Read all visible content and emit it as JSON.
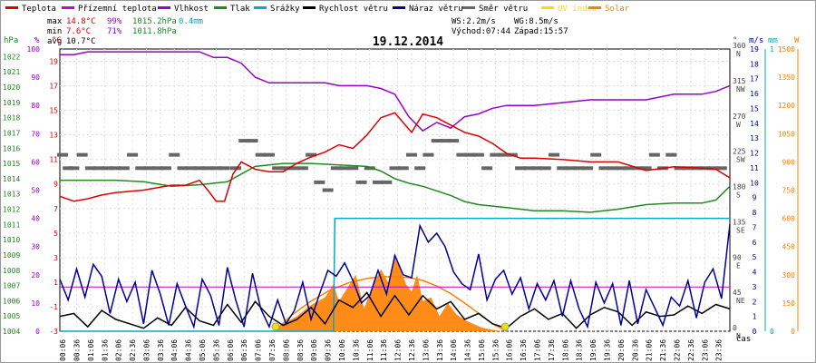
{
  "chart_data": {
    "type": "line",
    "title": "19.12.2014",
    "xlabel": "čas",
    "legend": [
      {
        "name": "Teplota",
        "color": "#dd0000"
      },
      {
        "name": "Přízemní teplota",
        "color": "#cc00cc"
      },
      {
        "name": "Vlhkost",
        "color": "#9900cc"
      },
      {
        "name": "Tlak",
        "color": "#228822"
      },
      {
        "name": "Srážky",
        "color": "#00aacc"
      },
      {
        "name": "Rychlost větru",
        "color": "#000000"
      },
      {
        "name": "Náraz větru",
        "color": "#000099"
      },
      {
        "name": "Směr větru",
        "color": "#666666"
      },
      {
        "name": "UV index",
        "color": "#f0e000"
      },
      {
        "name": "Solar",
        "color": "#ff8000"
      }
    ],
    "stats": {
      "max_label": "max",
      "max_temp": "14.8°C",
      "max_hum": "99%",
      "max_press": "1015.2hPa",
      "rain": "0.4mm",
      "min_label": "min",
      "min_temp": "7.6°C",
      "min_hum": "71%",
      "min_press": "1011.8hPa",
      "avg_label": "avg",
      "avg_temp": "10.7°C",
      "ws": "WS:2.2m/s",
      "wg": "WG:8.5m/s",
      "sunrise": "Východ:07:44",
      "sunset": "Západ:15:57"
    },
    "axis_units": {
      "hpa": "hPa",
      "pct": "%",
      "degc": "°C",
      "deg": "°",
      "mm": "mm",
      "ms": "m/s",
      "w": "W"
    },
    "axes": {
      "temperature_c": {
        "ticks": [
          "-3",
          "-1",
          "1",
          "3",
          "5",
          "7",
          "9",
          "11",
          "13",
          "15",
          "17",
          "19"
        ],
        "range": [
          -3,
          20
        ]
      },
      "humidity_pct": {
        "ticks": [
          "0",
          "10",
          "20",
          "30",
          "40",
          "50",
          "60",
          "70",
          "80",
          "90",
          "100"
        ],
        "range": [
          0,
          100
        ]
      },
      "pressure_hpa": {
        "ticks": [
          "1004",
          "1005",
          "1006",
          "1007",
          "1008",
          "1009",
          "1010",
          "1011",
          "1012",
          "1013",
          "1014",
          "1015",
          "1016",
          "1017",
          "1018",
          "1019",
          "1020",
          "1021",
          "1022"
        ],
        "range": [
          1004,
          1022.5
        ]
      },
      "wind_dir_deg": {
        "ticks": [
          "0",
          "45",
          "90",
          "135",
          "180",
          "225",
          "270",
          "315",
          "360"
        ],
        "labels": [
          "N",
          "NE",
          "E",
          "SE",
          "S",
          "SW",
          "W",
          "NW",
          "N"
        ],
        "range": [
          0,
          360
        ]
      },
      "rain_mm": {
        "ticks": [
          "0",
          "1"
        ],
        "range": [
          0,
          1
        ]
      },
      "wind_ms": {
        "ticks": [
          "0",
          "1",
          "2",
          "3",
          "4",
          "5",
          "6",
          "7",
          "8",
          "9",
          "10",
          "11",
          "12",
          "13",
          "14",
          "15",
          "16",
          "17",
          "18",
          "19"
        ],
        "range": [
          0,
          19
        ]
      },
      "solar_w": {
        "ticks": [
          "0",
          "150",
          "300",
          "450",
          "600",
          "750",
          "900",
          "1050",
          "1200",
          "1350",
          "1500"
        ],
        "range": [
          0,
          1500
        ]
      }
    },
    "x_ticks": [
      "00:06",
      "00:36",
      "01:06",
      "01:36",
      "02:06",
      "02:36",
      "03:06",
      "03:36",
      "04:06",
      "04:36",
      "05:06",
      "05:36",
      "06:06",
      "06:36",
      "07:06",
      "07:36",
      "08:06",
      "08:36",
      "09:06",
      "09:36",
      "10:06",
      "10:36",
      "11:06",
      "11:36",
      "12:06",
      "12:36",
      "13:06",
      "13:36",
      "14:06",
      "14:36",
      "15:06",
      "15:36",
      "16:06",
      "16:36",
      "17:06",
      "17:36",
      "18:06",
      "18:36",
      "19:06",
      "19:36",
      "20:06",
      "20:36",
      "21:06",
      "21:36",
      "22:06",
      "22:36",
      "23:06",
      "23:36"
    ],
    "x_range_hours": [
      0,
      24
    ],
    "series": [
      {
        "name": "Teplota",
        "unit": "°C",
        "axis": "temperature_c",
        "x": [
          0,
          0.5,
          1,
          1.5,
          2,
          2.5,
          3,
          3.5,
          4,
          4.5,
          5,
          5.3,
          5.6,
          5.9,
          6.2,
          6.5,
          7,
          7.5,
          8,
          8.5,
          9,
          9.5,
          10,
          10.5,
          11,
          11.5,
          12,
          12.3,
          12.6,
          13,
          13.5,
          14,
          14.5,
          15,
          15.5,
          16,
          16.5,
          17,
          18,
          19,
          20,
          21,
          22,
          23,
          23.5,
          24
        ],
        "values": [
          8.0,
          7.6,
          7.8,
          8.1,
          8.3,
          8.4,
          8.5,
          8.7,
          8.9,
          8.9,
          9.3,
          8.5,
          7.6,
          7.6,
          9.8,
          10.8,
          10.2,
          10.0,
          10.0,
          10.7,
          11.2,
          11.6,
          12.2,
          11.9,
          13.0,
          14.4,
          14.8,
          14.0,
          13.2,
          14.7,
          14.4,
          13.8,
          13.2,
          12.9,
          12.3,
          11.5,
          11.1,
          11.1,
          11.0,
          10.8,
          10.8,
          10.1,
          10.4,
          10.3,
          10.2,
          9.5
        ]
      },
      {
        "name": "Přízemní teplota",
        "unit": "°C",
        "axis": "temperature_c",
        "x": [
          0,
          24
        ],
        "values": [
          0.6,
          0.6
        ]
      },
      {
        "name": "Vlhkost",
        "unit": "%",
        "axis": "humidity_pct",
        "x": [
          0,
          0.5,
          1,
          2,
          3,
          4,
          5,
          5.5,
          6,
          6.5,
          7,
          7.5,
          8,
          8.5,
          9,
          9.5,
          10,
          10.5,
          11,
          11.5,
          12,
          12.5,
          13,
          13.5,
          14,
          14.5,
          15,
          15.5,
          16,
          17,
          18,
          19,
          20,
          21,
          22,
          23,
          23.5,
          24
        ],
        "values": [
          98,
          98,
          99,
          99,
          99,
          99,
          99,
          97,
          97,
          95,
          90,
          88,
          88,
          88,
          88,
          88,
          87,
          87,
          87,
          86,
          84,
          76,
          71,
          74,
          72,
          76,
          77,
          79,
          80,
          80,
          81,
          82,
          82,
          82,
          84,
          84,
          85,
          87
        ]
      },
      {
        "name": "Tlak",
        "unit": "hPa",
        "axis": "pressure_hpa",
        "x": [
          0,
          1,
          2,
          3,
          4,
          5,
          6,
          6.5,
          7,
          8,
          9,
          10,
          11,
          11.5,
          12,
          12.5,
          13,
          13.5,
          14,
          14.5,
          15,
          16,
          17,
          18,
          19,
          20,
          21,
          22,
          23,
          23.5,
          24
        ],
        "values": [
          1013.9,
          1013.9,
          1013.9,
          1013.8,
          1013.5,
          1013.6,
          1013.8,
          1014.3,
          1014.8,
          1015.0,
          1015.0,
          1014.9,
          1014.8,
          1014.5,
          1014.0,
          1013.7,
          1013.5,
          1013.2,
          1012.9,
          1012.5,
          1012.3,
          1012.1,
          1011.9,
          1011.9,
          1011.8,
          1012.0,
          1012.3,
          1012.4,
          1012.4,
          1012.6,
          1013.5
        ]
      },
      {
        "name": "Srážky",
        "unit": "mm",
        "axis": "rain_mm",
        "x": [
          0,
          9.8,
          9.85,
          23.8,
          23.85,
          24
        ],
        "values": [
          0,
          0,
          0.4,
          0.4,
          0.4,
          0.4
        ]
      },
      {
        "name": "Rychlost větru",
        "unit": "m/s",
        "axis": "wind_ms",
        "x": [
          0,
          0.5,
          1,
          1.5,
          2,
          2.5,
          3,
          3.5,
          4,
          4.5,
          5,
          5.5,
          6,
          6.5,
          7,
          7.5,
          8,
          8.5,
          9,
          9.5,
          10,
          10.5,
          11,
          11.5,
          12,
          12.5,
          13,
          13.5,
          14,
          14.5,
          15,
          15.5,
          16,
          16.5,
          17,
          17.5,
          18,
          18.5,
          19,
          19.5,
          20,
          20.5,
          21,
          21.5,
          22,
          22.5,
          23,
          23.5,
          24
        ],
        "values": [
          1.0,
          1.2,
          0.3,
          1.4,
          0.8,
          0.5,
          0.2,
          0.9,
          0.4,
          1.6,
          0.7,
          0.4,
          1.8,
          0.6,
          2.0,
          1.0,
          0.4,
          0.8,
          1.6,
          0.5,
          2.1,
          1.6,
          2.6,
          1.0,
          2.4,
          1.1,
          2.4,
          1.5,
          2.0,
          0.8,
          1.2,
          0.5,
          0.2,
          1.0,
          1.5,
          0.8,
          1.2,
          0.2,
          1.1,
          1.6,
          1.3,
          0.4,
          1.3,
          1.0,
          1.1,
          1.7,
          1.2,
          1.8,
          1.5
        ]
      },
      {
        "name": "Náraz větru",
        "unit": "m/s",
        "axis": "wind_ms",
        "x": [
          0,
          0.3,
          0.6,
          0.9,
          1.2,
          1.5,
          1.8,
          2.1,
          2.4,
          2.7,
          3,
          3.3,
          3.6,
          3.9,
          4.2,
          4.5,
          4.8,
          5.1,
          5.4,
          5.7,
          6,
          6.3,
          6.6,
          6.9,
          7.2,
          7.5,
          7.8,
          8.1,
          8.4,
          8.7,
          9,
          9.3,
          9.6,
          9.9,
          10.2,
          10.5,
          10.8,
          11.1,
          11.4,
          11.7,
          12,
          12.3,
          12.6,
          12.9,
          13.2,
          13.5,
          13.8,
          14.1,
          14.4,
          14.7,
          15,
          15.3,
          15.6,
          15.9,
          16.2,
          16.5,
          16.8,
          17.1,
          17.4,
          17.7,
          18,
          18.3,
          18.6,
          18.9,
          19.2,
          19.5,
          19.8,
          20.1,
          20.4,
          20.7,
          21,
          21.3,
          21.6,
          21.9,
          22.2,
          22.5,
          22.8,
          23.1,
          23.4,
          23.7,
          24
        ],
        "values": [
          3.5,
          2.1,
          4.2,
          2.3,
          4.5,
          3.7,
          1.2,
          3.5,
          2.0,
          3.3,
          0.5,
          4.1,
          2.5,
          0.4,
          3.2,
          1.7,
          0.3,
          3.5,
          2.4,
          0.4,
          4.3,
          2.1,
          0.3,
          3.9,
          1.5,
          0.3,
          2.1,
          0.5,
          1.4,
          3.3,
          0.8,
          2.5,
          4.1,
          3.7,
          4.6,
          3.4,
          1.9,
          2.4,
          4.1,
          2.5,
          5.1,
          3.8,
          3.6,
          7.1,
          6.0,
          6.6,
          5.7,
          4.0,
          3.2,
          2.8,
          5.2,
          2.1,
          3.5,
          4.1,
          2.5,
          3.6,
          1.5,
          3.2,
          2.1,
          3.4,
          1.0,
          3.4,
          1.5,
          0.3,
          3.3,
          1.9,
          3.2,
          0.4,
          3.4,
          0.5,
          2.8,
          1.6,
          0.4,
          2.3,
          1.7,
          3.4,
          0.9,
          3.3,
          4.2,
          2.2,
          7.2
        ]
      },
      {
        "name": "Solar",
        "unit": "W",
        "axis": "solar_w",
        "x": [
          7.7,
          8.0,
          8.5,
          9.0,
          9.5,
          9.8,
          10.0,
          10.3,
          10.6,
          10.9,
          11.2,
          11.5,
          11.8,
          12.0,
          12.2,
          12.4,
          12.6,
          12.8,
          13.0,
          13.3,
          13.6,
          13.9,
          14.2,
          14.5,
          14.8,
          15.1,
          15.4,
          15.8,
          16.0
        ],
        "values": [
          0,
          40,
          80,
          140,
          180,
          250,
          160,
          230,
          300,
          120,
          240,
          330,
          250,
          390,
          330,
          250,
          210,
          300,
          160,
          180,
          80,
          150,
          90,
          60,
          40,
          20,
          10,
          0,
          0
        ]
      },
      {
        "name": "Solar max",
        "unit": "W",
        "axis": "solar_w",
        "x": [
          7.7,
          8.3,
          9,
          9.7,
          10.4,
          11,
          11.5,
          12,
          12.5,
          13,
          13.5,
          14,
          14.5,
          15,
          15.5,
          16
        ],
        "values": [
          0,
          85,
          160,
          220,
          260,
          280,
          290,
          290,
          285,
          270,
          240,
          200,
          150,
          95,
          40,
          0
        ]
      },
      {
        "name": "Směr větru",
        "unit": "°",
        "axis": "wind_dir_deg",
        "style": "dashes",
        "x": [
          0.1,
          0.3,
          0.5,
          0.8,
          1.1,
          1.4,
          1.7,
          2.0,
          2.3,
          2.6,
          2.9,
          3.2,
          3.5,
          3.8,
          4.1,
          4.4,
          4.7,
          5.0,
          5.3,
          5.6,
          5.9,
          6.3,
          6.6,
          6.9,
          7.2,
          7.5,
          7.8,
          8.1,
          8.4,
          8.7,
          9.0,
          9.3,
          9.6,
          9.9,
          10.2,
          10.5,
          10.8,
          11.1,
          11.4,
          11.7,
          12.0,
          12.3,
          12.6,
          12.9,
          13.2,
          13.5,
          13.8,
          14.1,
          14.4,
          14.7,
          15.0,
          15.3,
          15.6,
          15.9,
          16.2,
          16.5,
          16.8,
          17.1,
          17.4,
          17.7,
          18.0,
          18.3,
          18.6,
          18.9,
          19.2,
          19.5,
          19.8,
          20.1,
          20.4,
          20.7,
          21.0,
          21.3,
          21.6,
          21.9,
          22.2,
          22.5,
          22.8,
          23.1,
          23.4,
          23.7
        ],
        "values": [
          225,
          208,
          208,
          225,
          208,
          208,
          208,
          208,
          208,
          225,
          208,
          208,
          208,
          208,
          225,
          208,
          208,
          208,
          208,
          208,
          208,
          208,
          243,
          243,
          225,
          225,
          208,
          208,
          208,
          208,
          225,
          190,
          180,
          208,
          208,
          208,
          190,
          208,
          190,
          190,
          208,
          208,
          225,
          208,
          225,
          243,
          243,
          243,
          225,
          225,
          225,
          208,
          225,
          225,
          225,
          208,
          208,
          208,
          208,
          225,
          208,
          208,
          208,
          208,
          225,
          208,
          208,
          208,
          208,
          208,
          208,
          225,
          208,
          225,
          208,
          208,
          208,
          208,
          208,
          208
        ]
      }
    ],
    "markers": [
      {
        "name": "sunrise",
        "x": 7.73,
        "color": "#f0e000"
      },
      {
        "name": "sunset",
        "x": 15.95,
        "color": "#f0e000"
      }
    ]
  }
}
